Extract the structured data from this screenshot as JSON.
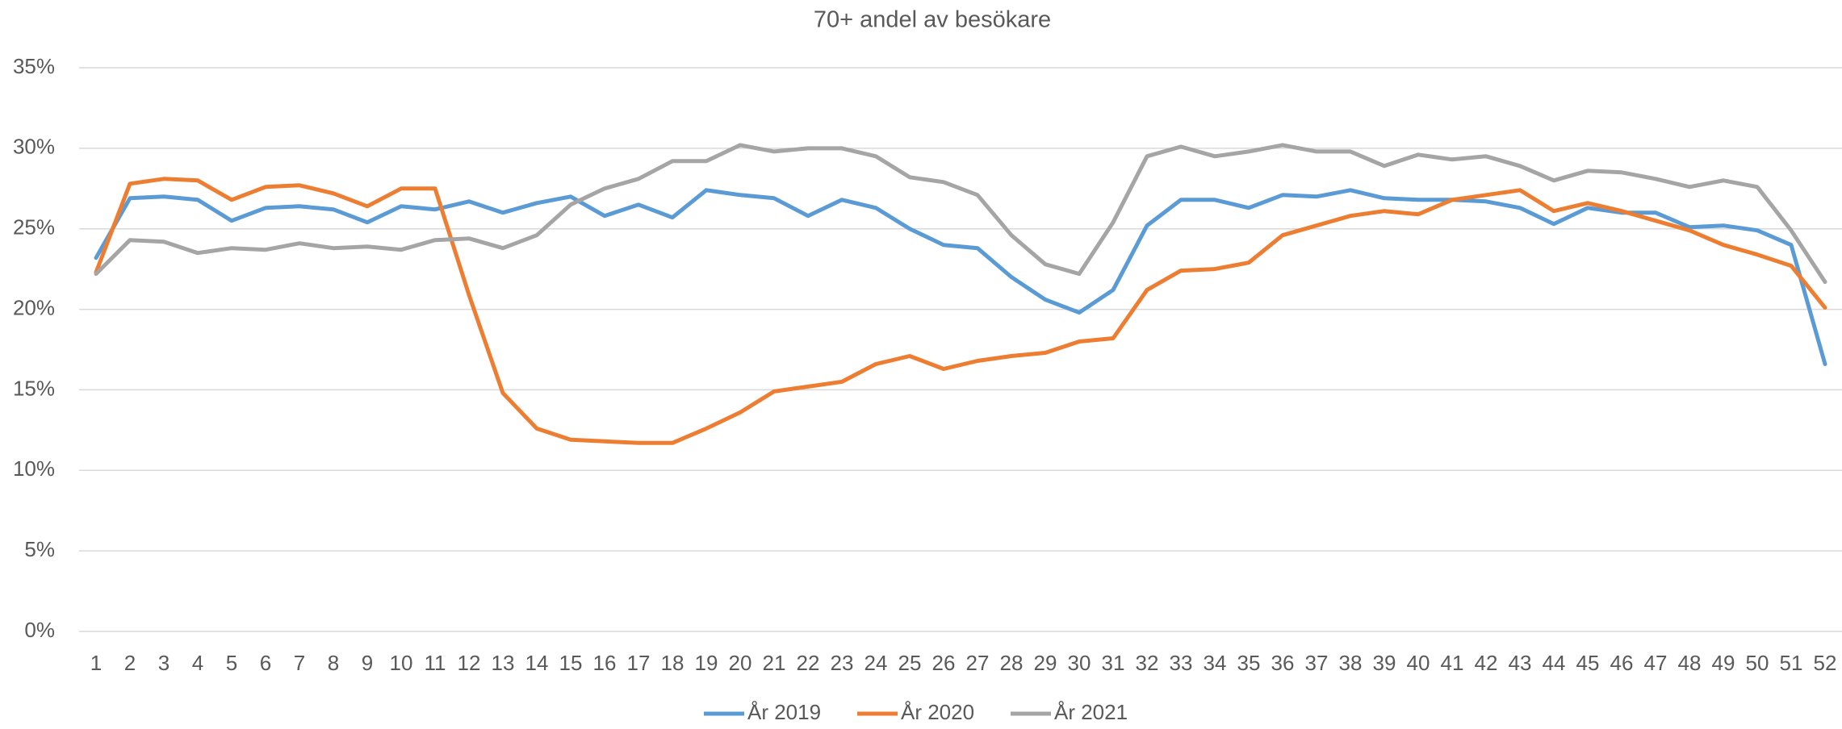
{
  "chart_data": {
    "type": "line",
    "title": "70+ andel av besökare",
    "categories": [
      "1",
      "2",
      "3",
      "4",
      "5",
      "6",
      "7",
      "8",
      "9",
      "10",
      "11",
      "12",
      "13",
      "14",
      "15",
      "16",
      "17",
      "18",
      "19",
      "20",
      "21",
      "22",
      "23",
      "24",
      "25",
      "26",
      "27",
      "28",
      "29",
      "30",
      "31",
      "32",
      "33",
      "34",
      "35",
      "36",
      "37",
      "38",
      "39",
      "40",
      "41",
      "42",
      "43",
      "44",
      "45",
      "46",
      "47",
      "48",
      "49",
      "50",
      "51",
      "52"
    ],
    "series": [
      {
        "name": "År 2019",
        "color": "#5b9bd5",
        "values": [
          23.2,
          26.9,
          27.0,
          26.8,
          25.5,
          26.3,
          26.4,
          26.2,
          25.4,
          26.4,
          26.2,
          26.7,
          26.0,
          26.6,
          27.0,
          25.8,
          26.5,
          25.7,
          27.4,
          27.1,
          26.9,
          25.8,
          26.8,
          26.3,
          25.0,
          24.0,
          23.8,
          22.0,
          20.6,
          19.8,
          21.2,
          25.2,
          26.8,
          26.8,
          26.3,
          27.1,
          27.0,
          27.4,
          26.9,
          26.8,
          26.8,
          26.7,
          26.3,
          25.3,
          26.3,
          26.0,
          26.0,
          25.1,
          25.2,
          24.9,
          24.0,
          16.6
        ]
      },
      {
        "name": "År 2020",
        "color": "#ed7d31",
        "values": [
          22.3,
          27.8,
          28.1,
          28.0,
          26.8,
          27.6,
          27.7,
          27.2,
          26.4,
          27.5,
          27.5,
          20.9,
          14.8,
          12.6,
          11.9,
          11.8,
          11.7,
          11.7,
          12.6,
          13.6,
          14.9,
          15.2,
          15.5,
          16.6,
          17.1,
          16.3,
          16.8,
          17.1,
          17.3,
          18.0,
          18.2,
          21.2,
          22.4,
          22.5,
          22.9,
          24.6,
          25.2,
          25.8,
          26.1,
          25.9,
          26.8,
          27.1,
          27.4,
          26.1,
          26.6,
          26.1,
          25.5,
          24.9,
          24.0,
          23.4,
          22.7,
          20.1
        ]
      },
      {
        "name": "År 2021",
        "color": "#a5a5a5",
        "values": [
          22.2,
          24.3,
          24.2,
          23.5,
          23.8,
          23.7,
          24.1,
          23.8,
          23.9,
          23.7,
          24.3,
          24.4,
          23.8,
          24.6,
          26.5,
          27.5,
          28.1,
          29.2,
          29.2,
          30.2,
          29.8,
          30.0,
          30.0,
          29.5,
          28.2,
          27.9,
          27.1,
          24.6,
          22.8,
          22.2,
          25.4,
          29.5,
          30.1,
          29.5,
          29.8,
          30.2,
          29.8,
          29.8,
          28.9,
          29.6,
          29.3,
          29.5,
          28.9,
          28.0,
          28.6,
          28.5,
          28.1,
          27.6,
          28.0,
          27.6,
          24.9,
          21.7
        ]
      }
    ],
    "ylim": [
      0,
      35
    ],
    "yticks": [
      {
        "value": 0,
        "label": "0%"
      },
      {
        "value": 5,
        "label": "5%"
      },
      {
        "value": 10,
        "label": "10%"
      },
      {
        "value": 15,
        "label": "15%"
      },
      {
        "value": 20,
        "label": "20%"
      },
      {
        "value": 25,
        "label": "25%"
      },
      {
        "value": 30,
        "label": "30%"
      },
      {
        "value": 35,
        "label": "35%"
      }
    ],
    "grid": true,
    "legend": "bottom"
  }
}
